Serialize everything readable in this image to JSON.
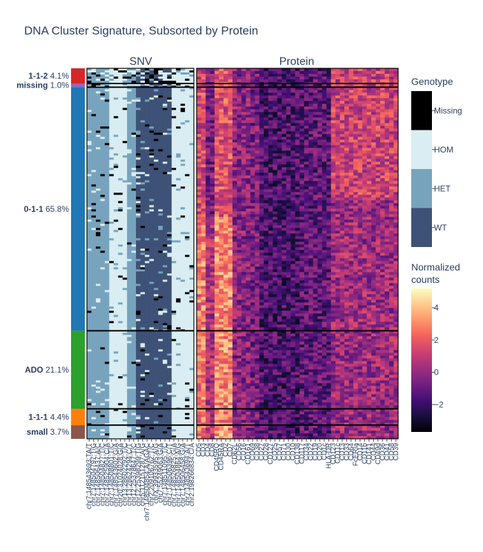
{
  "chart_data": {
    "type": "heatmap",
    "title": "DNA Cluster Signature, Subsorted by Protein",
    "panels": [
      {
        "name": "SNV",
        "title": "SNV"
      },
      {
        "name": "Protein",
        "title": "Protein"
      }
    ],
    "clusters": [
      {
        "label": "1-1-2",
        "pct": "4.1%",
        "pct_value": 4.1,
        "color": "#d62728"
      },
      {
        "label": "missing",
        "pct": "1.0%",
        "pct_value": 1.0,
        "color": "#9467bd"
      },
      {
        "label": "0-1-1",
        "pct": "65.8%",
        "pct_value": 65.8,
        "color": "#1f77b4"
      },
      {
        "label": "ADO",
        "pct": "21.1%",
        "pct_value": 21.1,
        "color": "#2ca02c"
      },
      {
        "label": "1-1-1",
        "pct": "4.4%",
        "pct_value": 4.4,
        "color": "#ff7f0e"
      },
      {
        "label": "small",
        "pct": "3.7%",
        "pct_value": 3.7,
        "color": "#8c564b"
      }
    ],
    "snv_labels": [
      "chr7:148543693:TA/T",
      "chr7:148504797:T/G",
      "chr7:148506437:A/C",
      "chr7:148504827:T/C",
      "chr7:148525904:C/A",
      "chr7:148508801:T/C",
      "chr7:148543602:G/A",
      "chr20:31024028:G/A",
      "chr13:28602292:T/C",
      "chr13:28624294:C/T",
      "chr12:25378647:T/C",
      "chr12:25398299:T/G",
      "chr5:112151287:A/G",
      "chr7:148504854:A/AGAC",
      "chr2:209106762:T/C",
      "chrX:39933595:A/G",
      "chr7:55249063:G/A",
      "chr7:148511095:T/C",
      "chr7:148506396:C/T",
      "chr7:148526825:G/A",
      "chr7:148504864:A/G",
      "chr7:148506458:G/A",
      "chr7:148543694:A/T",
      "chr2:198266834:C/A"
    ],
    "protein_labels": [
      "CD5",
      "CD3",
      "CD4",
      "CD8",
      "CD45RO",
      "CD45RA",
      "CD2",
      "CD7",
      "CD62L",
      "CD56",
      "CD16",
      "CD161",
      "CD69",
      "CD38",
      "CD27",
      "CD28",
      "CD127",
      "CD25",
      "CD57",
      "CD71",
      "CD30",
      "CD10",
      "CD138",
      "CD117",
      "CD34",
      "CD22",
      "CD19",
      "CD20",
      "CD1c",
      "HLA-DR",
      "CD123",
      "CD11c",
      "CD13",
      "CD33",
      "CD64",
      "FcERIa",
      "CD14",
      "CD11b",
      "CD141",
      "CD44",
      "CD49d",
      "CD36",
      "CD41",
      "CD58",
      "CD39"
    ],
    "genotype_legend": {
      "title": "Genotype",
      "categories": [
        "WT",
        "HET",
        "HOM",
        "Missing"
      ],
      "colors": [
        "#3e5176",
        "#78a3bd",
        "#d9edf2",
        "#000000"
      ]
    },
    "colorbar": {
      "title_line1": "Normalized",
      "title_line2": "counts",
      "range": [
        -3.7,
        5.2
      ],
      "tickvals": [
        -2,
        0,
        2,
        4
      ],
      "ticktext": [
        "−2",
        "0",
        "2",
        "4"
      ],
      "colorscale": [
        "#000004",
        "#180f3d",
        "#440f76",
        "#721f81",
        "#9e2f7f",
        "#cd4071",
        "#f1605d",
        "#fd9668",
        "#feca8d",
        "#fcfdbf"
      ]
    }
  }
}
